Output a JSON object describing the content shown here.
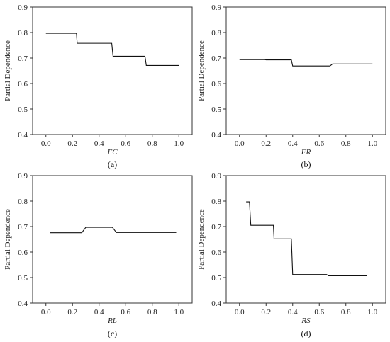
{
  "chart_data": [
    {
      "panel": "(a)",
      "type": "line",
      "xlabel": "FC",
      "ylabel": "Partial Dependence",
      "xlim": [
        -0.1,
        1.1
      ],
      "ylim": [
        0.4,
        0.9
      ],
      "xticks": [
        "0.0",
        "0.2",
        "0.4",
        "0.6",
        "0.8",
        "1.0"
      ],
      "yticks": [
        "0.4",
        "0.5",
        "0.6",
        "0.7",
        "0.8",
        "0.9"
      ],
      "grid": false,
      "series": [
        {
          "x": [
            0.0,
            0.23,
            0.235,
            0.495,
            0.505,
            0.745,
            0.755,
            1.0
          ],
          "y": [
            0.797,
            0.797,
            0.758,
            0.758,
            0.707,
            0.707,
            0.671,
            0.671
          ]
        }
      ]
    },
    {
      "panel": "(b)",
      "type": "line",
      "xlabel": "FR",
      "ylabel": "Partial Dependence",
      "xlim": [
        -0.1,
        1.1
      ],
      "ylim": [
        0.4,
        0.9
      ],
      "xticks": [
        "0.0",
        "0.2",
        "0.4",
        "0.6",
        "0.8",
        "1.0"
      ],
      "yticks": [
        "0.4",
        "0.5",
        "0.6",
        "0.7",
        "0.8",
        "0.9"
      ],
      "grid": false,
      "series": [
        {
          "x": [
            0.0,
            0.19,
            0.2,
            0.39,
            0.4,
            0.68,
            0.7,
            1.0
          ],
          "y": [
            0.694,
            0.694,
            0.693,
            0.693,
            0.669,
            0.669,
            0.677,
            0.677
          ]
        }
      ]
    },
    {
      "panel": "(c)",
      "type": "line",
      "xlabel": "RL",
      "ylabel": "Partial Dependence",
      "xlim": [
        -0.1,
        1.1
      ],
      "ylim": [
        0.4,
        0.9
      ],
      "xticks": [
        "0.0",
        "0.2",
        "0.4",
        "0.6",
        "0.8",
        "1.0"
      ],
      "yticks": [
        "0.4",
        "0.5",
        "0.6",
        "0.7",
        "0.8",
        "0.9"
      ],
      "grid": false,
      "series": [
        {
          "x": [
            0.03,
            0.27,
            0.3,
            0.5,
            0.53,
            0.98
          ],
          "y": [
            0.676,
            0.676,
            0.697,
            0.697,
            0.677,
            0.677
          ]
        }
      ]
    },
    {
      "panel": "(d)",
      "type": "line",
      "xlabel": "RS",
      "ylabel": "Partial Dependence",
      "xlim": [
        -0.1,
        1.1
      ],
      "ylim": [
        0.4,
        0.9
      ],
      "xticks": [
        "0.0",
        "0.2",
        "0.4",
        "0.6",
        "0.8",
        "1.0"
      ],
      "yticks": [
        "0.4",
        "0.5",
        "0.6",
        "0.7",
        "0.8",
        "0.9"
      ],
      "grid": false,
      "series": [
        {
          "x": [
            0.05,
            0.075,
            0.085,
            0.255,
            0.26,
            0.39,
            0.4,
            0.655,
            0.67,
            0.96
          ],
          "y": [
            0.797,
            0.797,
            0.705,
            0.705,
            0.652,
            0.652,
            0.512,
            0.512,
            0.507,
            0.507
          ]
        }
      ]
    }
  ]
}
